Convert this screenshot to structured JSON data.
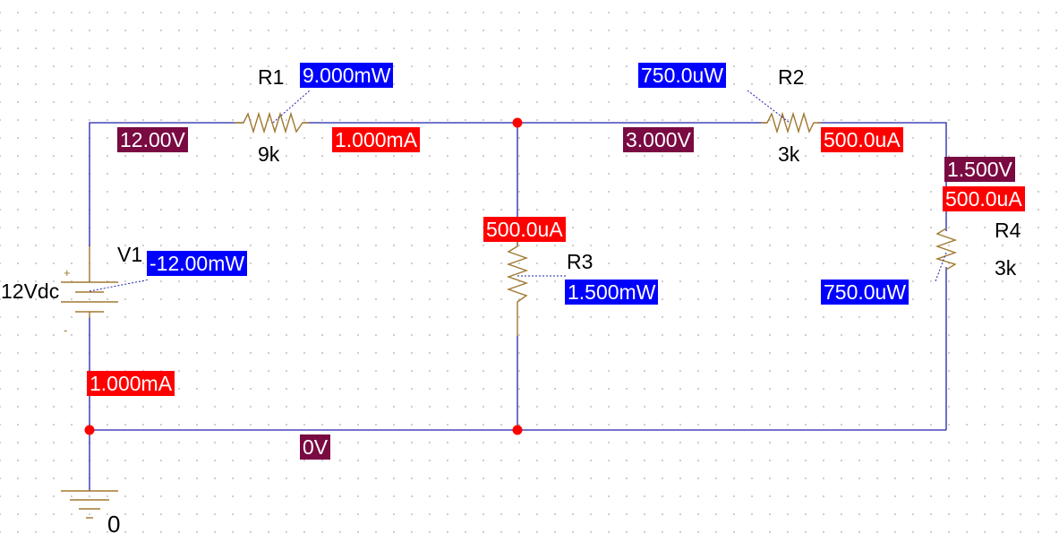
{
  "components": {
    "r1": {
      "ref": "R1",
      "value": "9k"
    },
    "r2": {
      "ref": "R2",
      "value": "3k"
    },
    "r3": {
      "ref": "R3",
      "value": ""
    },
    "r4": {
      "ref": "R4",
      "value": "3k"
    },
    "v1": {
      "ref": "V1",
      "value": "12Vdc",
      "plus": "+",
      "minus": "-"
    },
    "ground": {
      "label": "0"
    }
  },
  "voltages": {
    "n1": "12.00V",
    "n2": "3.000V",
    "n3": "1.500V",
    "gnd": "0V"
  },
  "currents": {
    "r1": "1.000mA",
    "r2": "500.0uA",
    "r4": "500.0uA",
    "r3": "500.0uA",
    "v1": "1.000mA"
  },
  "powers": {
    "r1": "9.000mW",
    "r2": "750.0uW",
    "v1": "-12.00mW",
    "r3": "1.500mW",
    "r4": "750.0uW"
  },
  "colors": {
    "wire": "#2222aa",
    "part": "#a07830",
    "junction": "#ff0000",
    "voltage_bg": "#7a0a42",
    "current_bg": "#ff0000",
    "power_bg": "#0000ff"
  }
}
